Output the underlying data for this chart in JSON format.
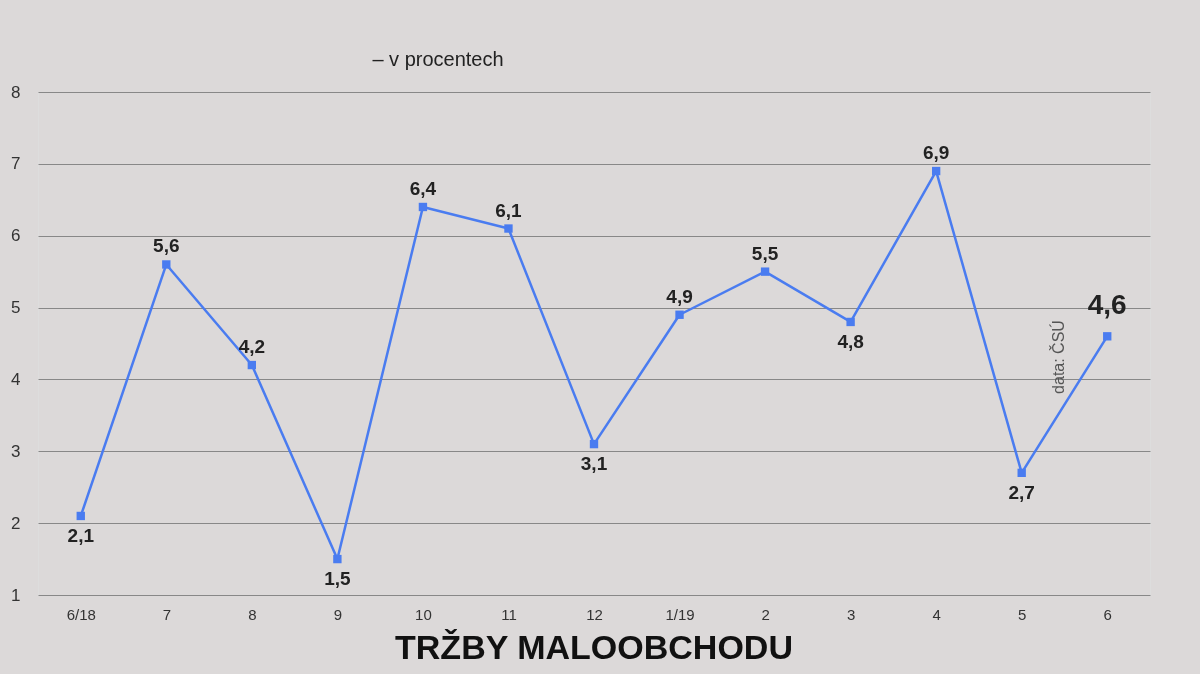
{
  "chart_data": {
    "type": "line",
    "title": "TRŽBY MALOOBCHODU",
    "subtitle": "– v procentech",
    "categories": [
      "6/18",
      "7",
      "8",
      "9",
      "10",
      "11",
      "12",
      "1/19",
      "2",
      "3",
      "4",
      "5",
      "6"
    ],
    "series": [
      {
        "color": "#4a7cf0",
        "values": [
          2.1,
          5.6,
          4.2,
          1.5,
          6.4,
          6.1,
          3.1,
          4.9,
          5.5,
          4.8,
          6.9,
          2.7,
          4.6
        ],
        "value_labels": [
          "2,1",
          "5,6",
          "4,2",
          "1,5",
          "6,4",
          "6,1",
          "3,1",
          "4,9",
          "5,5",
          "4,8",
          "6,9",
          "2,7",
          "4,6"
        ]
      }
    ],
    "ylim": [
      1,
      8
    ],
    "yticks": [
      1,
      2,
      3,
      4,
      5,
      6,
      7,
      8
    ],
    "grid": "y",
    "marker": "square",
    "line_style": "solid",
    "annotations": [
      "data: ČSÚ"
    ]
  }
}
